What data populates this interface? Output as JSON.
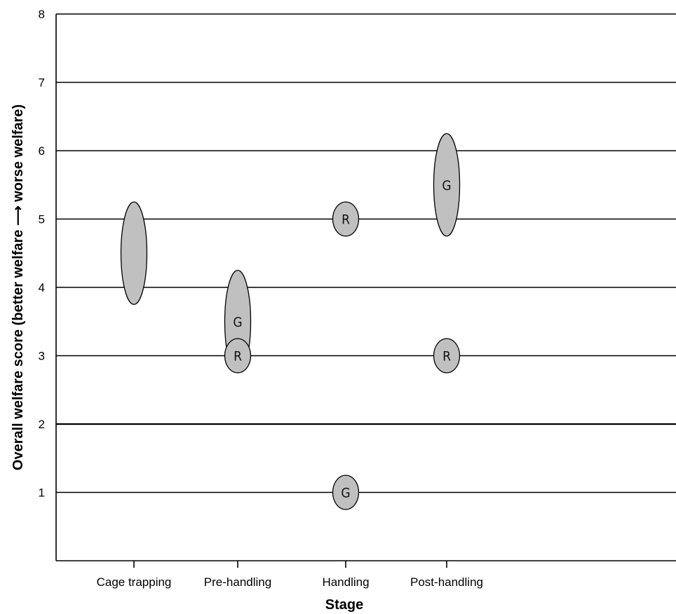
{
  "chart_data": {
    "type": "scatter",
    "xlabel": "Stage",
    "ylabel": "Overall welfare score (better welfare ⟶ worse welfare)",
    "categories": [
      "Cage trapping",
      "Pre-handling",
      "Handling",
      "Post-handling"
    ],
    "ylim": [
      0,
      8
    ],
    "yticks": [
      "1",
      "2",
      "3",
      "4",
      "5",
      "6",
      "7",
      "8"
    ],
    "grid": true,
    "colors": {
      "fill": "#c0c0c0",
      "stroke": "#000000",
      "grid": "#000000"
    },
    "points": [
      {
        "category": "Cage trapping",
        "y": 4.5,
        "y_low": 3.75,
        "y_high": 5.25,
        "label": ""
      },
      {
        "category": "Pre-handling",
        "y": 3.5,
        "y_low": 2.75,
        "y_high": 4.25,
        "label": "G"
      },
      {
        "category": "Pre-handling",
        "y": 3.0,
        "y_low": 2.75,
        "y_high": 3.25,
        "label": "R"
      },
      {
        "category": "Handling",
        "y": 5.0,
        "y_low": 4.75,
        "y_high": 5.25,
        "label": "R"
      },
      {
        "category": "Handling",
        "y": 1.0,
        "y_low": 0.75,
        "y_high": 1.25,
        "label": "G"
      },
      {
        "category": "Post-handling",
        "y": 5.5,
        "y_low": 4.75,
        "y_high": 6.25,
        "label": "G"
      },
      {
        "category": "Post-handling",
        "y": 3.0,
        "y_low": 2.75,
        "y_high": 3.25,
        "label": "R"
      }
    ]
  }
}
